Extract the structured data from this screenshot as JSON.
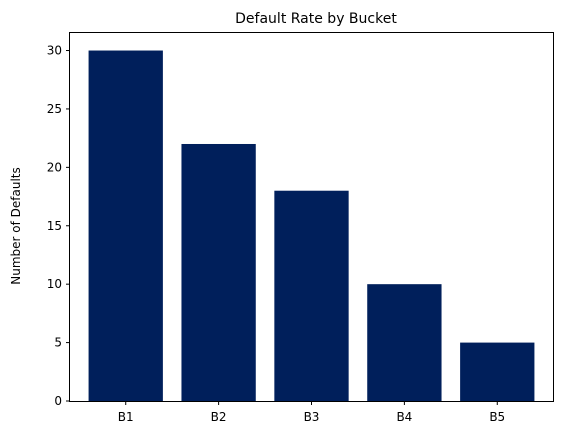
{
  "chart_data": {
    "type": "bar",
    "title": "Default Rate by Bucket",
    "xlabel": "",
    "ylabel": "Number of Defaults",
    "categories": [
      "B1",
      "B2",
      "B3",
      "B4",
      "B5"
    ],
    "values": [
      30,
      22,
      18,
      10,
      5
    ],
    "ylim": [
      0,
      31.5
    ],
    "yticks": [
      0,
      5,
      10,
      15,
      20,
      25,
      30
    ],
    "grid": false,
    "bar_color": "#001f5b"
  }
}
